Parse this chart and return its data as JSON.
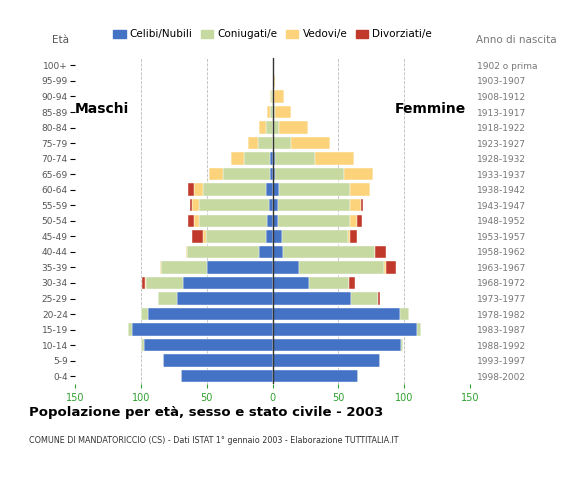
{
  "age_groups": [
    "0-4",
    "5-9",
    "10-14",
    "15-19",
    "20-24",
    "25-29",
    "30-34",
    "35-39",
    "40-44",
    "45-49",
    "50-54",
    "55-59",
    "60-64",
    "65-69",
    "70-74",
    "75-79",
    "80-84",
    "85-89",
    "90-94",
    "95-99",
    "100+"
  ],
  "birth_years": [
    "1998-2002",
    "1993-1997",
    "1988-1992",
    "1983-1987",
    "1978-1982",
    "1973-1977",
    "1968-1972",
    "1963-1967",
    "1958-1962",
    "1953-1957",
    "1948-1952",
    "1943-1947",
    "1938-1942",
    "1933-1937",
    "1928-1932",
    "1923-1927",
    "1918-1922",
    "1913-1917",
    "1908-1912",
    "1903-1907",
    "1902 o prima"
  ],
  "male_celibe": [
    70,
    83,
    98,
    107,
    95,
    73,
    68,
    50,
    10,
    5,
    4,
    3,
    5,
    2,
    2,
    0,
    0,
    0,
    0,
    0,
    0
  ],
  "male_coniugato": [
    0,
    0,
    2,
    3,
    5,
    14,
    28,
    35,
    55,
    46,
    52,
    53,
    48,
    36,
    20,
    11,
    5,
    2,
    1,
    0,
    0
  ],
  "male_vedovo": [
    0,
    0,
    0,
    0,
    0,
    0,
    1,
    1,
    1,
    2,
    4,
    5,
    7,
    10,
    10,
    8,
    5,
    2,
    1,
    0,
    0
  ],
  "male_divorziato": [
    0,
    0,
    0,
    0,
    0,
    0,
    2,
    0,
    0,
    8,
    4,
    2,
    4,
    0,
    0,
    0,
    0,
    0,
    0,
    0,
    0
  ],
  "female_celibe": [
    65,
    82,
    98,
    110,
    97,
    60,
    28,
    20,
    8,
    7,
    4,
    4,
    5,
    2,
    2,
    0,
    0,
    0,
    0,
    0,
    0
  ],
  "female_coniugato": [
    0,
    0,
    1,
    3,
    7,
    20,
    30,
    65,
    70,
    50,
    55,
    55,
    54,
    52,
    30,
    14,
    5,
    2,
    1,
    0,
    0
  ],
  "female_vedovo": [
    0,
    0,
    0,
    0,
    0,
    0,
    0,
    1,
    0,
    2,
    5,
    8,
    15,
    22,
    30,
    30,
    22,
    12,
    8,
    2,
    0
  ],
  "female_divorziato": [
    0,
    0,
    0,
    0,
    0,
    2,
    5,
    8,
    8,
    5,
    4,
    2,
    0,
    0,
    0,
    0,
    0,
    0,
    0,
    0,
    0
  ],
  "colors": {
    "celibe": "#4472c4",
    "coniugato": "#c5d9a0",
    "vedovo": "#fcd27a",
    "divorziato": "#c0392b"
  },
  "title": "Popolazione per età, sesso e stato civile - 2003",
  "subtitle": "COMUNE DI MANDATORICCIO (CS) - Dati ISTAT 1° gennaio 2003 - Elaborazione TUTTITALIA.IT",
  "label_maschi": "Maschi",
  "label_femmine": "Femmine",
  "label_eta": "Età",
  "label_anno": "Anno di nascita",
  "xlim": 150,
  "bg_color": "#ffffff",
  "grid_color": "#bbbbbb",
  "axis_tick_color": "#2da02d",
  "legend_labels": [
    "Celibi/Nubili",
    "Coniugati/e",
    "Vedovi/e",
    "Divorziati/e"
  ]
}
